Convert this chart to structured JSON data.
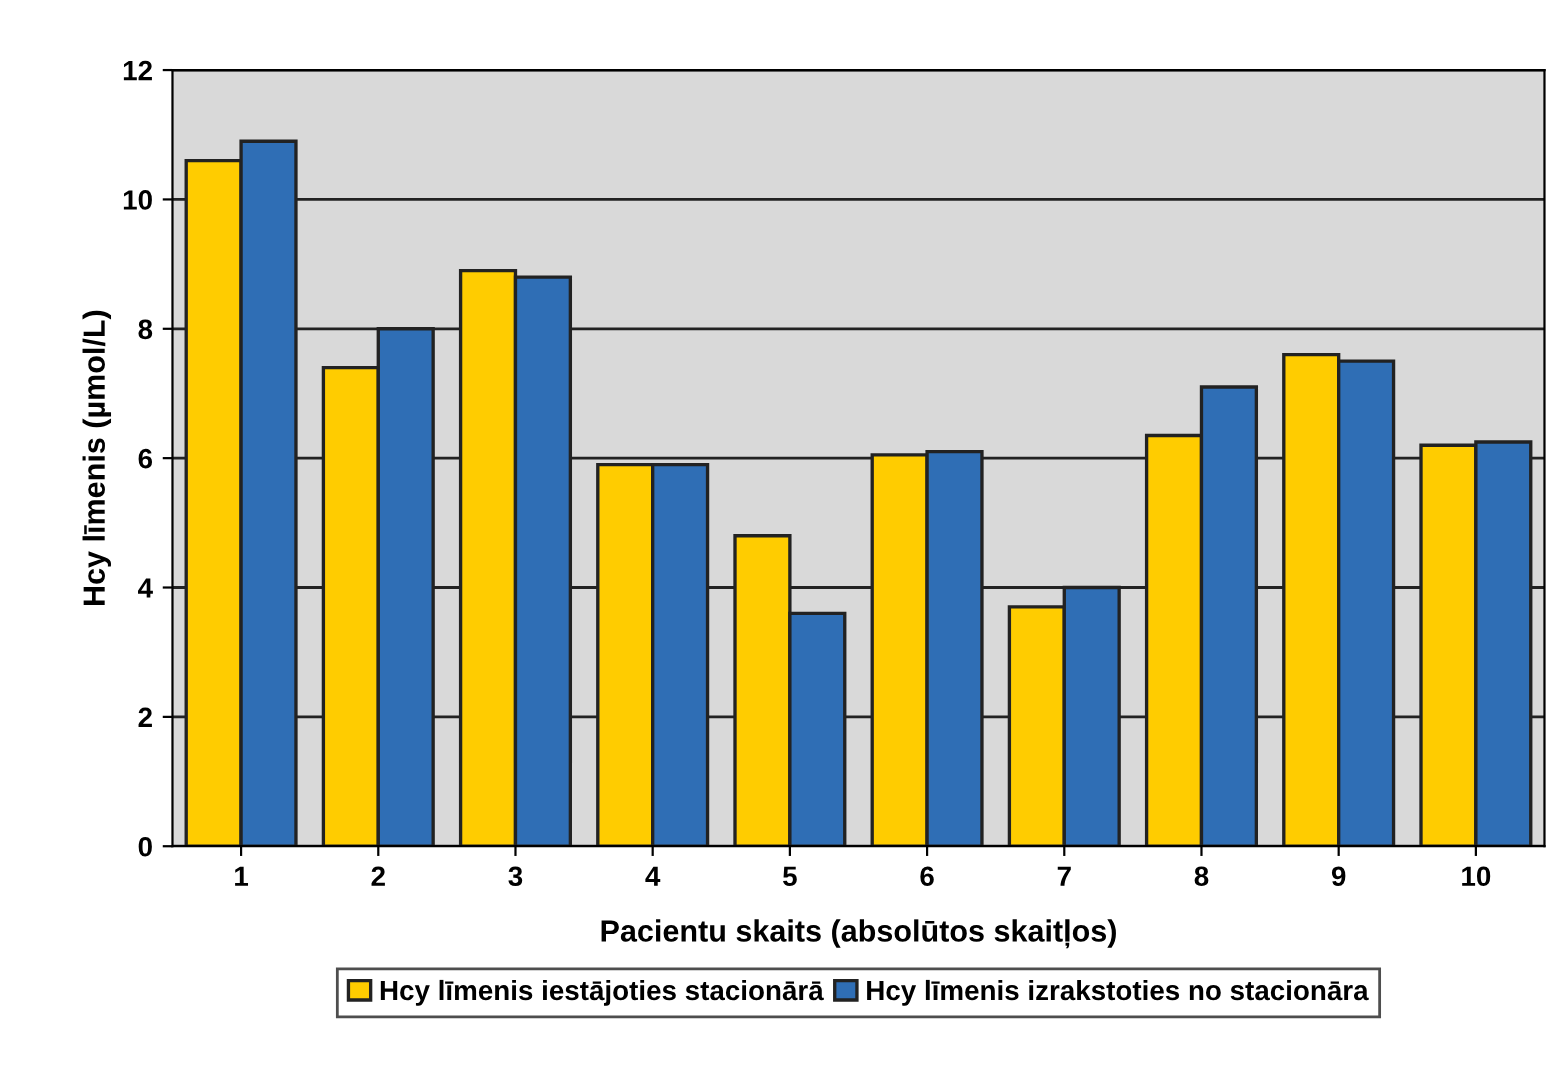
{
  "chart_data": {
    "type": "bar",
    "xlabel": "Pacientu skaits (absolūtos skaitļos)",
    "ylabel": "Hcy līmenis (µmol/L)",
    "categories": [
      "1",
      "2",
      "3",
      "4",
      "5",
      "6",
      "7",
      "8",
      "9",
      "10"
    ],
    "series": [
      {
        "name": "Hcy līmenis iestājoties stacionārā",
        "color": "#ffcc00",
        "values": [
          10.6,
          7.4,
          8.9,
          5.9,
          4.8,
          6.05,
          3.7,
          6.35,
          7.6,
          6.2
        ]
      },
      {
        "name": "Hcy līmenis izrakstoties no stacionāra",
        "color": "#2f6eb5",
        "values": [
          10.9,
          8.0,
          8.8,
          5.9,
          3.6,
          6.1,
          4.0,
          7.1,
          7.5,
          6.25
        ]
      }
    ],
    "ylim": [
      0,
      12
    ],
    "yticks": [
      0,
      2,
      4,
      6,
      8,
      10,
      12
    ],
    "grid": "y",
    "legend": "bottom"
  }
}
